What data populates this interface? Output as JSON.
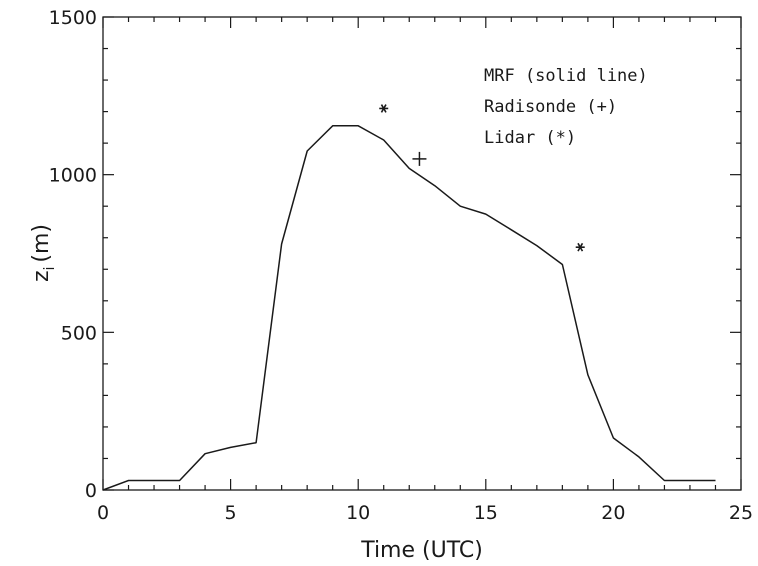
{
  "chart_data": {
    "type": "line",
    "xlabel": "Time (UTC)",
    "ylabel_main": "z",
    "ylabel_sub": "i",
    "ylabel_unit": "(m)",
    "xlim": [
      0,
      25
    ],
    "ylim": [
      0,
      1500
    ],
    "x_ticks": [
      "0",
      "5",
      "10",
      "15",
      "20",
      "25"
    ],
    "y_ticks": [
      "0",
      "500",
      "1000",
      "1500"
    ],
    "grid": false,
    "legend_position": "top-right",
    "legend": [
      "MRF (solid line)",
      "Radisonde (+)",
      "Lidar (*)"
    ],
    "series": [
      {
        "name": "MRF (solid line)",
        "marker": "line",
        "x": [
          0,
          1,
          2,
          3,
          4,
          5,
          6,
          7,
          8,
          9,
          10,
          11,
          12,
          13,
          14,
          15,
          16,
          17,
          18,
          19,
          20,
          21,
          22,
          23,
          24
        ],
        "y": [
          0,
          30,
          30,
          30,
          115,
          135,
          150,
          780,
          1075,
          1155,
          1155,
          1110,
          1020,
          965,
          900,
          875,
          825,
          775,
          715,
          365,
          165,
          105,
          30,
          30,
          30
        ]
      },
      {
        "name": "Radisonde (+)",
        "marker": "plus",
        "x": [
          12.4
        ],
        "y": [
          1050
        ]
      },
      {
        "name": "Lidar (*)",
        "marker": "star",
        "x": [
          11,
          18.7
        ],
        "y": [
          1210,
          770
        ]
      }
    ]
  }
}
